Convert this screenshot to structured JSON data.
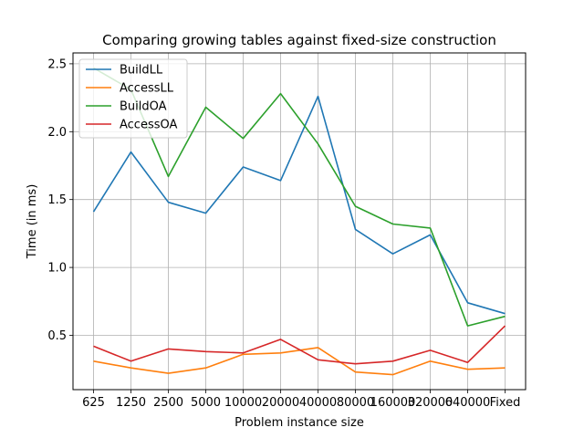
{
  "chart_data": {
    "type": "line",
    "title": "Comparing growing tables against fixed-size construction",
    "xlabel": "Problem instance size",
    "ylabel": "Time (in ms)",
    "categories": [
      "625",
      "1250",
      "2500",
      "5000",
      "10000",
      "20000",
      "40000",
      "80000",
      "160000",
      "320000",
      "640000",
      "Fixed"
    ],
    "ylim": [
      0.1,
      2.58
    ],
    "yticks": [
      "0.5",
      "1.0",
      "1.5",
      "2.0",
      "2.5"
    ],
    "grid": true,
    "legend_position": "top-left",
    "series": [
      {
        "name": "BuildLL",
        "color": "#1f77b4",
        "values": [
          1.41,
          1.85,
          1.48,
          1.4,
          1.74,
          1.64,
          2.26,
          1.28,
          1.1,
          1.24,
          0.74,
          0.66
        ]
      },
      {
        "name": "AccessLL",
        "color": "#ff7f0e",
        "values": [
          0.31,
          0.26,
          0.22,
          0.26,
          0.36,
          0.37,
          0.41,
          0.23,
          0.21,
          0.31,
          0.25,
          0.26
        ]
      },
      {
        "name": "BuildOA",
        "color": "#2ca02c",
        "values": [
          2.47,
          2.31,
          1.67,
          2.18,
          1.95,
          2.28,
          1.91,
          1.45,
          1.32,
          1.29,
          0.57,
          0.64
        ]
      },
      {
        "name": "AccessOA",
        "color": "#d62728",
        "values": [
          0.42,
          0.31,
          0.4,
          0.38,
          0.37,
          0.47,
          0.32,
          0.29,
          0.31,
          0.39,
          0.3,
          0.57
        ]
      }
    ]
  }
}
